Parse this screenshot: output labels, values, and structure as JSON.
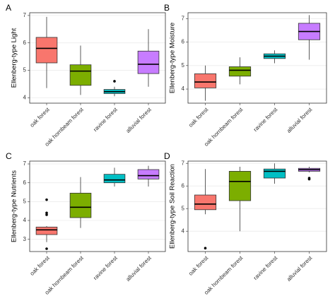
{
  "chart_data": [
    {
      "type": "box",
      "panel_label": "A",
      "y_label": "Ellenberg-type Light",
      "categories": [
        "oak forest",
        "oak hornbeam forest",
        "ravine forest",
        "alluvial forest"
      ],
      "colors": [
        "#F8766D",
        "#7CAE00",
        "#00BFC4",
        "#C77CFF"
      ],
      "min": [
        4.35,
        4.1,
        4.05,
        4.4
      ],
      "q1": [
        5.27,
        4.45,
        4.15,
        4.88
      ],
      "median": [
        5.8,
        4.97,
        4.22,
        5.22
      ],
      "q3": [
        6.2,
        5.2,
        4.3,
        5.7
      ],
      "max": [
        6.95,
        5.9,
        4.4,
        6.5
      ],
      "outliers": [
        [],
        [],
        [
          4.6
        ],
        []
      ],
      "ylim": [
        3.8,
        7.1
      ],
      "yticks": [
        4,
        5,
        6,
        7
      ],
      "grid": true
    },
    {
      "type": "box",
      "panel_label": "B",
      "y_label": "Ellenberg-type Moisture",
      "categories": [
        "oak forest",
        "oak hornbeam forest",
        "ravine forest",
        "alluvial forest"
      ],
      "colors": [
        "#F8766D",
        "#7CAE00",
        "#00BFC4",
        "#C77CFF"
      ],
      "min": [
        3.5,
        4.2,
        5.1,
        5.25
      ],
      "q1": [
        4.05,
        4.55,
        5.3,
        6.1
      ],
      "median": [
        4.3,
        4.8,
        5.4,
        6.45
      ],
      "q3": [
        4.65,
        4.95,
        5.5,
        6.8
      ],
      "max": [
        5.0,
        5.35,
        5.65,
        7.15
      ],
      "outliers": [
        [],
        [],
        [],
        []
      ],
      "ylim": [
        3.4,
        7.25
      ],
      "yticks": [
        4,
        5,
        6,
        7
      ],
      "grid": true
    },
    {
      "type": "box",
      "panel_label": "C",
      "y_label": "Ellenberg-type Nutrients",
      "categories": [
        "oak forest",
        "oak hornbeam forest",
        "ravine forest",
        "alluvial forest"
      ],
      "colors": [
        "#F8766D",
        "#7CAE00",
        "#00BFC4",
        "#C77CFF"
      ],
      "min": [
        2.85,
        3.6,
        5.8,
        5.8
      ],
      "q1": [
        3.25,
        4.15,
        6.0,
        6.2
      ],
      "median": [
        3.5,
        4.7,
        6.15,
        6.38
      ],
      "q3": [
        3.65,
        5.45,
        6.45,
        6.7
      ],
      "max": [
        3.7,
        6.3,
        6.8,
        6.9
      ],
      "outliers": [
        [
          2.5,
          4.3,
          4.4,
          5.1
        ],
        [],
        [],
        []
      ],
      "ylim": [
        2.35,
        7.15
      ],
      "yticks": [
        3,
        4,
        5,
        6,
        7
      ],
      "grid": true
    },
    {
      "type": "box",
      "panel_label": "D",
      "y_label": "Ellenberg-type Soil Reaction",
      "categories": [
        "oak forest",
        "oak hornbeam forest",
        "ravine forest",
        "alluvial forest"
      ],
      "colors": [
        "#F8766D",
        "#7CAE00",
        "#00BFC4",
        "#C77CFF"
      ],
      "min": [
        4.75,
        4.0,
        6.1,
        6.6
      ],
      "q1": [
        4.95,
        5.35,
        6.35,
        6.65
      ],
      "median": [
        5.2,
        6.2,
        6.65,
        6.72
      ],
      "q3": [
        5.6,
        6.65,
        6.75,
        6.78
      ],
      "max": [
        6.75,
        6.85,
        7.0,
        6.85
      ],
      "outliers": [
        [
          3.25
        ],
        [],
        [],
        [
          6.3,
          6.35
        ]
      ],
      "ylim": [
        3.1,
        7.1
      ],
      "yticks": [
        4,
        5,
        6,
        7
      ],
      "grid": true
    }
  ]
}
